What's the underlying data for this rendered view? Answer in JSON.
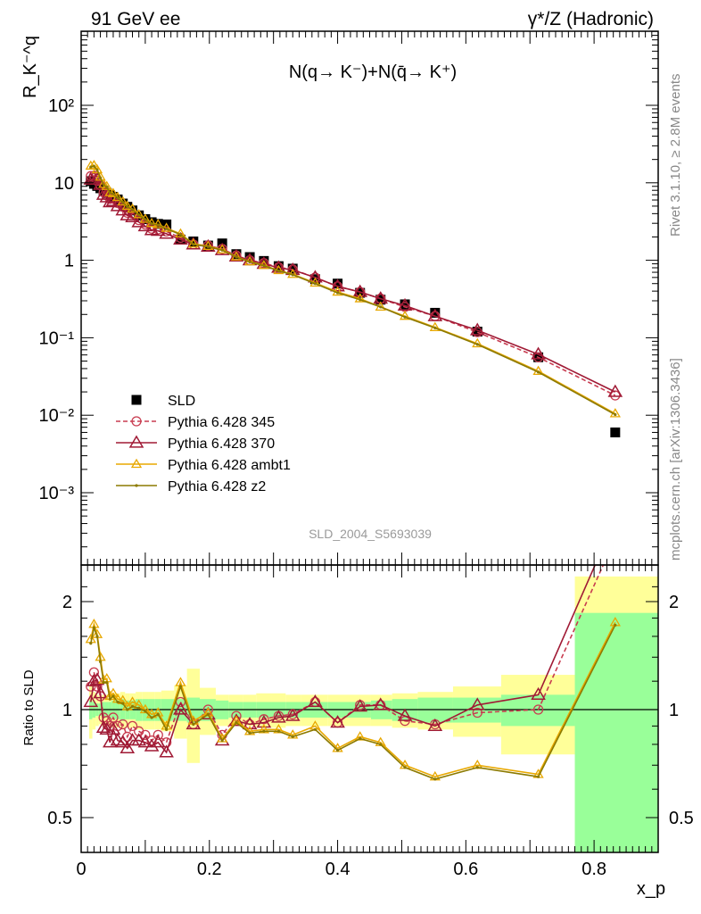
{
  "header": {
    "left": "91 GeV ee",
    "right": "γ*/Z (Hadronic)"
  },
  "side_labels": {
    "rivet": "Rivet 3.1.10, ≥ 2.8M events",
    "mcplots": "mcplots.cern.ch [arXiv:1306.3436]"
  },
  "plot_title": "N(q→ K⁻)+N(q̄→ K⁺)",
  "analysis_id": "SLD_2004_S5693039",
  "chart_data": [
    {
      "type": "line",
      "panel": "main",
      "ylabel": "R_K⁻^q",
      "yscale": "log",
      "ylim": [
        0.0001,
        1000
      ],
      "xlim": [
        0,
        0.9
      ],
      "y_tick_labels": [
        "10⁻³",
        "10⁻²",
        "10⁻¹",
        "1",
        "10",
        "10²"
      ],
      "legend": {
        "placement": "left-middle",
        "entries": [
          "SLD",
          "Pythia 6.428 345",
          "Pythia 6.428 370",
          "Pythia 6.428 ambt1",
          "Pythia 6.428 z2"
        ]
      },
      "series": [
        {
          "name": "SLD",
          "color": "#000000",
          "marker": "square",
          "line": "none",
          "x": [
            0.015,
            0.02,
            0.025,
            0.03,
            0.035,
            0.04,
            0.045,
            0.05,
            0.057,
            0.065,
            0.072,
            0.08,
            0.09,
            0.1,
            0.11,
            0.12,
            0.133,
            0.155,
            0.175,
            0.198,
            0.22,
            0.242,
            0.263,
            0.285,
            0.308,
            0.33,
            0.365,
            0.4,
            0.435,
            0.467,
            0.505,
            0.552,
            0.618,
            0.713,
            0.833
          ],
          "y": [
            10.5,
            9.7,
            9.1,
            8.5,
            7.9,
            7.4,
            6.9,
            6.6,
            6.1,
            5.4,
            4.9,
            4.4,
            3.8,
            3.4,
            3.1,
            2.95,
            2.9,
            1.85,
            1.75,
            1.55,
            1.65,
            1.2,
            1.1,
            0.98,
            0.84,
            0.78,
            0.57,
            0.5,
            0.38,
            0.31,
            0.27,
            0.21,
            0.12,
            0.056,
            0.006
          ]
        },
        {
          "name": "Pythia 6.428 345",
          "color": "#c83c50",
          "marker": "open-circle",
          "line": "dashed",
          "x": [
            0.015,
            0.02,
            0.025,
            0.03,
            0.035,
            0.04,
            0.045,
            0.05,
            0.057,
            0.065,
            0.072,
            0.08,
            0.09,
            0.1,
            0.11,
            0.12,
            0.133,
            0.155,
            0.175,
            0.198,
            0.22,
            0.242,
            0.263,
            0.285,
            0.308,
            0.33,
            0.365,
            0.4,
            0.435,
            0.467,
            0.505,
            0.552,
            0.618,
            0.713,
            0.833
          ],
          "y": [
            12.2,
            12.3,
            10.6,
            9.3,
            7.5,
            6.9,
            6.2,
            6.3,
            5.5,
            4.9,
            4.1,
            4.0,
            3.3,
            2.9,
            2.55,
            2.5,
            2.35,
            1.95,
            1.6,
            1.55,
            1.4,
            1.15,
            1.0,
            0.92,
            0.81,
            0.76,
            0.6,
            0.46,
            0.39,
            0.32,
            0.25,
            0.19,
            0.118,
            0.056,
            0.018
          ]
        },
        {
          "name": "Pythia 6.428 370",
          "color": "#a01a35",
          "marker": "open-triangle",
          "line": "solid",
          "x": [
            0.015,
            0.02,
            0.025,
            0.03,
            0.035,
            0.04,
            0.045,
            0.05,
            0.057,
            0.065,
            0.072,
            0.08,
            0.09,
            0.1,
            0.11,
            0.12,
            0.133,
            0.155,
            0.175,
            0.198,
            0.22,
            0.242,
            0.263,
            0.285,
            0.308,
            0.33,
            0.365,
            0.4,
            0.435,
            0.467,
            0.505,
            0.552,
            0.618,
            0.713,
            0.833
          ],
          "y": [
            11.0,
            11.6,
            11.0,
            9.4,
            7.0,
            6.5,
            5.6,
            5.8,
            5.0,
            4.4,
            3.8,
            3.6,
            3.1,
            2.75,
            2.45,
            2.4,
            2.2,
            1.85,
            1.6,
            1.5,
            1.35,
            1.12,
            1.0,
            0.9,
            0.8,
            0.75,
            0.6,
            0.46,
            0.39,
            0.32,
            0.26,
            0.19,
            0.125,
            0.061,
            0.02
          ]
        },
        {
          "name": "Pythia 6.428 ambt1",
          "color": "#e8a800",
          "marker": "open-triangle-small",
          "line": "solid",
          "x": [
            0.015,
            0.02,
            0.025,
            0.03,
            0.035,
            0.04,
            0.045,
            0.05,
            0.057,
            0.065,
            0.072,
            0.08,
            0.09,
            0.1,
            0.11,
            0.12,
            0.133,
            0.155,
            0.175,
            0.198,
            0.22,
            0.242,
            0.263,
            0.285,
            0.308,
            0.33,
            0.365,
            0.4,
            0.435,
            0.467,
            0.505,
            0.552,
            0.618,
            0.713,
            0.833
          ],
          "y": [
            16.5,
            16.8,
            14.8,
            11.9,
            9.6,
            9.0,
            7.5,
            7.3,
            6.5,
            5.7,
            5.0,
            4.6,
            3.9,
            3.4,
            3.0,
            2.9,
            2.6,
            2.2,
            1.63,
            1.52,
            1.37,
            1.11,
            0.96,
            0.86,
            0.74,
            0.66,
            0.51,
            0.39,
            0.32,
            0.25,
            0.19,
            0.136,
            0.084,
            0.037,
            0.0105
          ]
        },
        {
          "name": "Pythia 6.428 z2",
          "color": "#8c7a00",
          "marker": "dot",
          "line": "solid",
          "x": [
            0.015,
            0.02,
            0.025,
            0.03,
            0.035,
            0.04,
            0.045,
            0.05,
            0.057,
            0.065,
            0.072,
            0.08,
            0.09,
            0.1,
            0.11,
            0.12,
            0.133,
            0.155,
            0.175,
            0.198,
            0.22,
            0.242,
            0.263,
            0.285,
            0.308,
            0.33,
            0.365,
            0.4,
            0.435,
            0.467,
            0.505,
            0.552,
            0.618,
            0.713,
            0.833
          ],
          "y": [
            16.0,
            16.4,
            14.6,
            11.6,
            9.4,
            8.8,
            7.4,
            7.2,
            6.4,
            5.6,
            4.9,
            4.5,
            3.85,
            3.35,
            2.95,
            2.85,
            2.55,
            2.15,
            1.6,
            1.5,
            1.35,
            1.1,
            0.95,
            0.85,
            0.73,
            0.65,
            0.5,
            0.38,
            0.31,
            0.25,
            0.185,
            0.134,
            0.082,
            0.036,
            0.0102
          ]
        }
      ]
    },
    {
      "type": "line",
      "panel": "ratio",
      "ylabel": "Ratio to SLD",
      "xlabel": "x_p",
      "ylim": [
        0.35,
        2.35
      ],
      "xlim": [
        0,
        0.9
      ],
      "x_tick_labels": [
        "0",
        "0.2",
        "0.4",
        "0.6",
        "0.8"
      ],
      "y_tick_labels": [
        "0.5",
        "1",
        "2"
      ],
      "reference_line": 1,
      "bands": {
        "x_edges": [
          0.0125,
          0.0175,
          0.0225,
          0.0275,
          0.0325,
          0.0375,
          0.0425,
          0.0475,
          0.0535,
          0.061,
          0.0685,
          0.076,
          0.085,
          0.095,
          0.105,
          0.115,
          0.125,
          0.145,
          0.165,
          0.185,
          0.21,
          0.23,
          0.253,
          0.273,
          0.297,
          0.319,
          0.343,
          0.385,
          0.418,
          0.452,
          0.485,
          0.525,
          0.58,
          0.655,
          0.77,
          0.9
        ],
        "inner_low": [
          0.94,
          0.95,
          0.96,
          0.96,
          0.95,
          0.95,
          0.95,
          0.94,
          0.94,
          0.93,
          0.94,
          0.94,
          0.93,
          0.93,
          0.93,
          0.93,
          0.93,
          0.93,
          0.92,
          0.93,
          0.94,
          0.95,
          0.95,
          0.95,
          0.95,
          0.95,
          0.95,
          0.95,
          0.95,
          0.94,
          0.93,
          0.92,
          0.92,
          0.9,
          0.35
        ],
        "inner_high": [
          1.06,
          1.05,
          1.04,
          1.04,
          1.05,
          1.05,
          1.05,
          1.06,
          1.06,
          1.07,
          1.06,
          1.06,
          1.07,
          1.07,
          1.07,
          1.07,
          1.07,
          1.07,
          1.08,
          1.07,
          1.06,
          1.05,
          1.05,
          1.05,
          1.05,
          1.05,
          1.05,
          1.05,
          1.05,
          1.06,
          1.07,
          1.08,
          1.08,
          1.1,
          1.86
        ],
        "outer_low": [
          0.83,
          0.88,
          0.9,
          0.91,
          0.9,
          0.9,
          0.9,
          0.89,
          0.89,
          0.88,
          0.89,
          0.89,
          0.88,
          0.88,
          0.88,
          0.88,
          0.87,
          0.83,
          0.71,
          0.85,
          0.9,
          0.9,
          0.9,
          0.89,
          0.89,
          0.9,
          0.9,
          0.9,
          0.9,
          0.9,
          0.89,
          0.88,
          0.84,
          0.75,
          0.35
        ],
        "outer_high": [
          1.17,
          1.12,
          1.1,
          1.09,
          1.1,
          1.1,
          1.1,
          1.11,
          1.11,
          1.12,
          1.11,
          1.11,
          1.12,
          1.12,
          1.12,
          1.12,
          1.13,
          1.17,
          1.3,
          1.15,
          1.1,
          1.1,
          1.1,
          1.11,
          1.11,
          1.1,
          1.1,
          1.1,
          1.1,
          1.1,
          1.11,
          1.12,
          1.16,
          1.25,
          2.35
        ]
      },
      "series": [
        {
          "name": "Pythia 6.428 345",
          "color": "#c83c50",
          "marker": "open-circle",
          "line": "dashed",
          "x": [
            0.015,
            0.02,
            0.025,
            0.03,
            0.035,
            0.04,
            0.045,
            0.05,
            0.057,
            0.065,
            0.072,
            0.08,
            0.09,
            0.1,
            0.11,
            0.12,
            0.133,
            0.155,
            0.175,
            0.198,
            0.22,
            0.242,
            0.263,
            0.285,
            0.308,
            0.33,
            0.365,
            0.4,
            0.435,
            0.467,
            0.505,
            0.552,
            0.618,
            0.713,
            0.833
          ],
          "y": [
            1.16,
            1.27,
            1.16,
            1.09,
            0.95,
            0.93,
            0.9,
            0.95,
            0.9,
            0.91,
            0.84,
            0.9,
            0.87,
            0.85,
            0.82,
            0.85,
            0.81,
            1.05,
            0.91,
            1.0,
            0.85,
            0.96,
            0.91,
            0.94,
            0.96,
            0.97,
            1.05,
            0.92,
            1.03,
            1.03,
            0.93,
            0.91,
            0.98,
            1.0,
            3.0
          ]
        },
        {
          "name": "Pythia 6.428 370",
          "color": "#a01a35",
          "marker": "open-triangle",
          "line": "solid",
          "x": [
            0.015,
            0.02,
            0.025,
            0.03,
            0.035,
            0.04,
            0.045,
            0.05,
            0.057,
            0.065,
            0.072,
            0.08,
            0.09,
            0.1,
            0.11,
            0.12,
            0.133,
            0.155,
            0.175,
            0.198,
            0.22,
            0.242,
            0.263,
            0.285,
            0.308,
            0.33,
            0.365,
            0.4,
            0.435,
            0.467,
            0.505,
            0.552,
            0.618,
            0.713,
            0.833
          ],
          "y": [
            1.05,
            1.2,
            1.21,
            1.11,
            0.89,
            0.88,
            0.81,
            0.88,
            0.82,
            0.81,
            0.78,
            0.82,
            0.82,
            0.81,
            0.79,
            0.81,
            0.76,
            1.0,
            0.91,
            0.97,
            0.82,
            0.93,
            0.91,
            0.92,
            0.95,
            0.96,
            1.05,
            0.92,
            1.02,
            1.03,
            0.96,
            0.9,
            1.03,
            1.1,
            3.4
          ]
        },
        {
          "name": "Pythia 6.428 ambt1",
          "color": "#e8a800",
          "marker": "open-triangle-small",
          "line": "solid",
          "x": [
            0.015,
            0.02,
            0.025,
            0.03,
            0.035,
            0.04,
            0.045,
            0.05,
            0.057,
            0.065,
            0.072,
            0.08,
            0.09,
            0.1,
            0.11,
            0.12,
            0.133,
            0.155,
            0.175,
            0.198,
            0.22,
            0.242,
            0.263,
            0.285,
            0.308,
            0.33,
            0.365,
            0.4,
            0.435,
            0.467,
            0.505,
            0.552,
            0.618,
            0.713,
            0.833
          ],
          "y": [
            1.57,
            1.73,
            1.62,
            1.4,
            1.21,
            1.22,
            1.09,
            1.11,
            1.07,
            1.06,
            1.02,
            1.05,
            1.03,
            1.0,
            0.97,
            0.98,
            0.9,
            1.19,
            0.93,
            0.98,
            0.83,
            0.93,
            0.87,
            0.88,
            0.88,
            0.85,
            0.9,
            0.78,
            0.84,
            0.81,
            0.7,
            0.65,
            0.7,
            0.66,
            1.75
          ]
        },
        {
          "name": "Pythia 6.428 z2",
          "color": "#8c7a00",
          "marker": "dot",
          "line": "solid",
          "x": [
            0.015,
            0.02,
            0.025,
            0.03,
            0.035,
            0.04,
            0.045,
            0.05,
            0.057,
            0.065,
            0.072,
            0.08,
            0.09,
            0.1,
            0.11,
            0.12,
            0.133,
            0.155,
            0.175,
            0.198,
            0.22,
            0.242,
            0.263,
            0.285,
            0.308,
            0.33,
            0.365,
            0.4,
            0.435,
            0.467,
            0.505,
            0.552,
            0.618,
            0.713,
            0.833
          ],
          "y": [
            1.53,
            1.69,
            1.6,
            1.36,
            1.19,
            1.19,
            1.07,
            1.09,
            1.05,
            1.04,
            1.0,
            1.02,
            1.01,
            0.99,
            0.95,
            0.97,
            0.88,
            1.16,
            0.91,
            0.97,
            0.82,
            0.92,
            0.86,
            0.87,
            0.87,
            0.84,
            0.88,
            0.77,
            0.83,
            0.8,
            0.69,
            0.64,
            0.69,
            0.65,
            1.72
          ]
        }
      ]
    }
  ]
}
